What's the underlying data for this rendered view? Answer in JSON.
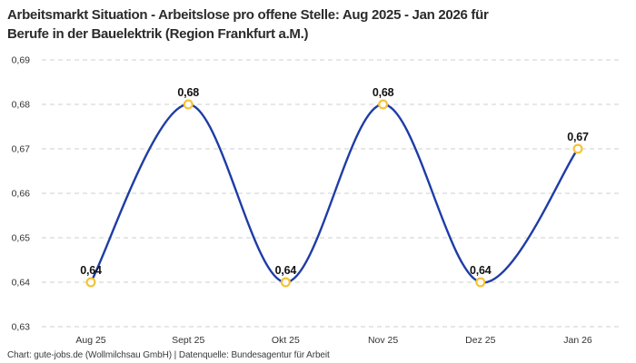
{
  "header": {
    "title_lines": [
      "Arbeitsmarkt Situation - Arbeitslose pro offene Stelle: Aug 2025 - Jan 2026 für",
      "Berufe in der Bauelektrik (Region Frankfurt a.M.)"
    ]
  },
  "chart_data": {
    "type": "line",
    "title": "Arbeitsmarkt Situation - Arbeitslose pro offene Stelle: Aug 2025 - Jan 2026 für Berufe in der Bauelektrik (Region Frankfurt a.M.)",
    "categories": [
      "Aug 25",
      "Sept 25",
      "Okt 25",
      "Nov 25",
      "Dez 25",
      "Jan 26"
    ],
    "values": [
      0.64,
      0.68,
      0.64,
      0.68,
      0.64,
      0.67
    ],
    "point_labels": [
      "0,64",
      "0,68",
      "0,64",
      "0,68",
      "0,64",
      "0,67"
    ],
    "y_ticks": [
      {
        "value": 0.69,
        "label": "0,69"
      },
      {
        "value": 0.68,
        "label": "0,68"
      },
      {
        "value": 0.67,
        "label": "0,67"
      },
      {
        "value": 0.66,
        "label": "0,66"
      },
      {
        "value": 0.65,
        "label": "0,65"
      },
      {
        "value": 0.64,
        "label": "0,64"
      },
      {
        "value": 0.63,
        "label": "0,63"
      }
    ],
    "ylim": [
      0.63,
      0.69
    ],
    "xlabel": "",
    "ylabel": "",
    "grid": "horizontal-dashed",
    "legend": "none",
    "curve": "smooth",
    "colors": {
      "line": "#1e3ca6",
      "marker_ring": "#f6c335",
      "marker_fill": "#ffffff",
      "grid_line": "#cfcfcf",
      "tick_text": "#333333",
      "point_label_text": "#111111",
      "title_text": "#2b2b2b",
      "background": "#ffffff"
    }
  },
  "footer": {
    "credit": "Chart: gute-jobs.de (Wollmilchsau GmbH) | Datenquelle: Bundesagentur für Arbeit"
  }
}
